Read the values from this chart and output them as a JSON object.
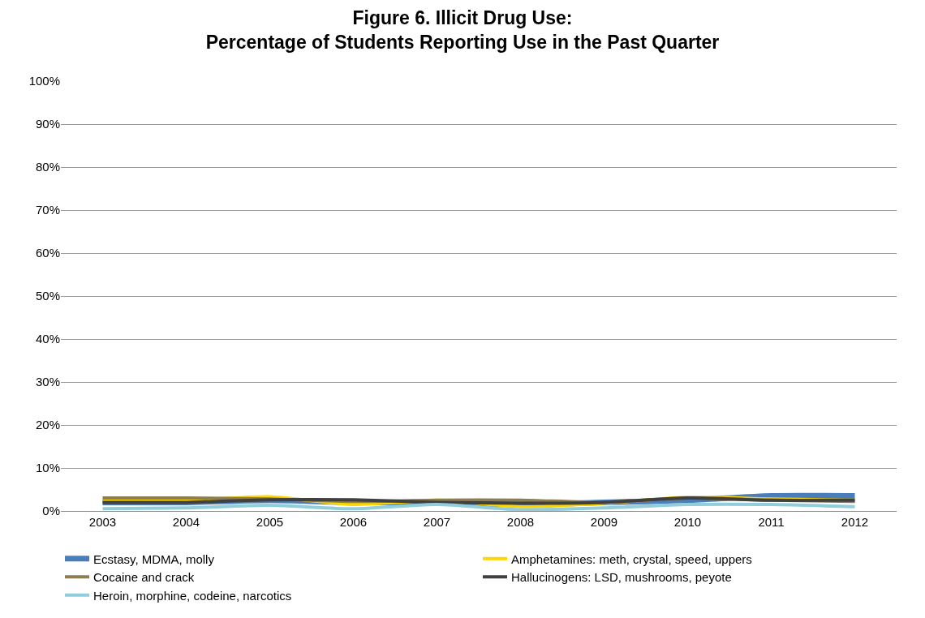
{
  "chart_data": {
    "type": "line",
    "title": "Figure 6. Illicit Drug Use:\nPercentage of Students Reporting Use in the Past Quarter",
    "categories": [
      "2003",
      "2004",
      "2005",
      "2006",
      "2007",
      "2008",
      "2009",
      "2010",
      "2011",
      "2012"
    ],
    "series": [
      {
        "name": "Ecstasy, MDMA, molly",
        "color": "#4a7ebb",
        "values": [
          2,
          2,
          2.5,
          2,
          2,
          1.5,
          2,
          2.5,
          3.5,
          3.5
        ]
      },
      {
        "name": "Amphetamines: meth, crystal, speed, uppers",
        "color": "#ffd700",
        "values": [
          2.5,
          2.5,
          3.3,
          1.5,
          2.5,
          1,
          1.8,
          3.2,
          2.8,
          2.5
        ]
      },
      {
        "name": "Cocaine and crack",
        "color": "#8c7e4e",
        "values": [
          3,
          3,
          2.8,
          2.2,
          2.5,
          2.5,
          2,
          3,
          2.5,
          2.2
        ]
      },
      {
        "name": "Hallucinogens: LSD, mushrooms, peyote",
        "color": "#404040",
        "values": [
          2,
          2,
          2.6,
          2.6,
          2,
          1.8,
          2,
          3,
          2.5,
          2.5
        ]
      },
      {
        "name": "Heroin, morphine, codeine, narcotics",
        "color": "#92cddc",
        "values": [
          0.5,
          0.7,
          1.3,
          0.5,
          1.5,
          0.3,
          0.7,
          1.5,
          1.5,
          1
        ]
      }
    ],
    "ylim": [
      0,
      100
    ],
    "yticks": [
      {
        "value": 0,
        "label": "0%"
      },
      {
        "value": 10,
        "label": "10%"
      },
      {
        "value": 20,
        "label": "20%"
      },
      {
        "value": 30,
        "label": "30%"
      },
      {
        "value": 40,
        "label": "40%"
      },
      {
        "value": 50,
        "label": "50%"
      },
      {
        "value": 60,
        "label": "60%"
      },
      {
        "value": 70,
        "label": "70%"
      },
      {
        "value": 80,
        "label": "80%"
      },
      {
        "value": 90,
        "label": "90%"
      },
      {
        "value": 100,
        "label": "100%"
      }
    ],
    "grid": "y",
    "legend": "bottom",
    "marker": "none",
    "line_style": "solid"
  }
}
